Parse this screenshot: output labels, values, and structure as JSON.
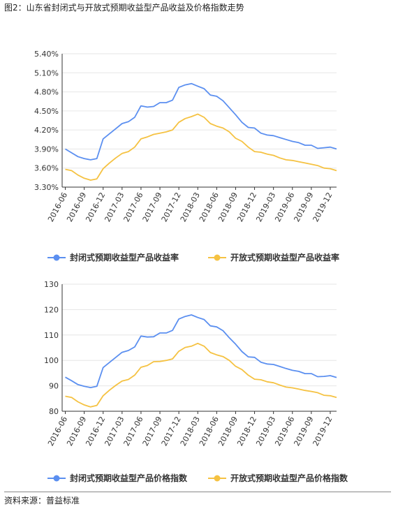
{
  "figure": {
    "title": "图2：山东省封闭式与开放式预期收益型产品收益及价格指数走势",
    "source": "资料来源：普益标准"
  },
  "chart_data": [
    {
      "type": "line",
      "ylim": [
        3.3,
        5.4
      ],
      "y_ticks": [
        "3.30%",
        "3.60%",
        "3.90%",
        "4.20%",
        "4.50%",
        "4.80%",
        "5.10%",
        "5.40%"
      ],
      "x_ticks": [
        "2016-06",
        "2016-09",
        "2016-12",
        "2017-03",
        "2017-06",
        "2017-09",
        "2017-12",
        "2018-03",
        "2018-06",
        "2018-09",
        "2018-12",
        "2019-03",
        "2019-06",
        "2019-09",
        "2019-12"
      ],
      "x_start": "2016-06",
      "grid": "horizontal",
      "legend_position": "bottom",
      "series": [
        {
          "name": "封闭式预期收益型产品收益率",
          "color": "#5b8ff0",
          "values": [
            3.9,
            3.84,
            3.78,
            3.75,
            3.73,
            3.75,
            4.06,
            4.14,
            4.22,
            4.3,
            4.33,
            4.4,
            4.58,
            4.56,
            4.57,
            4.63,
            4.63,
            4.67,
            4.87,
            4.91,
            4.93,
            4.89,
            4.85,
            4.75,
            4.73,
            4.66,
            4.55,
            4.44,
            4.32,
            4.24,
            4.23,
            4.15,
            4.12,
            4.11,
            4.08,
            4.05,
            4.02,
            4.0,
            3.96,
            3.96,
            3.91,
            3.92,
            3.93,
            3.9
          ]
        },
        {
          "name": "开放式预期收益型产品收益率",
          "color": "#f5c242",
          "values": [
            3.58,
            3.56,
            3.49,
            3.44,
            3.41,
            3.43,
            3.59,
            3.68,
            3.76,
            3.83,
            3.86,
            3.93,
            4.06,
            4.09,
            4.13,
            4.15,
            4.17,
            4.2,
            4.32,
            4.38,
            4.41,
            4.45,
            4.4,
            4.3,
            4.26,
            4.23,
            4.17,
            4.07,
            4.02,
            3.93,
            3.86,
            3.85,
            3.82,
            3.8,
            3.76,
            3.73,
            3.72,
            3.7,
            3.68,
            3.66,
            3.64,
            3.6,
            3.59,
            3.56
          ]
        }
      ]
    },
    {
      "type": "line",
      "ylim": [
        80,
        130
      ],
      "y_ticks": [
        "80",
        "90",
        "100",
        "110",
        "120",
        "130"
      ],
      "x_ticks": [
        "2016-06",
        "2016-09",
        "2016-12",
        "2017-03",
        "2017-06",
        "2017-09",
        "2017-12",
        "2018-03",
        "2018-06",
        "2018-09",
        "2018-12",
        "2019-03",
        "2019-06",
        "2019-09",
        "2019-12"
      ],
      "x_start": "2016-06",
      "grid": "horizontal",
      "legend_position": "bottom",
      "series": [
        {
          "name": "封闭式预期收益型产品价格指数",
          "color": "#5b8ff0",
          "values": [
            93.4,
            92.0,
            90.5,
            89.8,
            89.3,
            89.8,
            97.2,
            99.2,
            101.2,
            103.2,
            103.9,
            105.3,
            109.6,
            109.2,
            109.3,
            110.8,
            110.8,
            111.8,
            116.3,
            117.3,
            117.9,
            116.9,
            116.1,
            113.6,
            113.2,
            111.7,
            108.9,
            106.4,
            103.5,
            101.4,
            101.2,
            99.3,
            98.6,
            98.4,
            97.6,
            96.8,
            96.1,
            95.7,
            94.8,
            94.8,
            93.6,
            93.7,
            94.0,
            93.3
          ]
        },
        {
          "name": "开放式预期收益型产品价格指数",
          "color": "#f5c242",
          "values": [
            85.9,
            85.4,
            83.7,
            82.5,
            81.7,
            82.3,
            86.1,
            88.3,
            90.2,
            91.9,
            92.5,
            94.2,
            97.3,
            98.0,
            99.5,
            99.6,
            100.0,
            100.6,
            103.6,
            105.1,
            105.6,
            106.7,
            105.6,
            103.1,
            102.2,
            101.5,
            100.0,
            97.7,
            96.4,
            94.2,
            92.6,
            92.4,
            91.6,
            91.2,
            90.3,
            89.5,
            89.2,
            88.7,
            88.2,
            87.8,
            87.3,
            86.3,
            86.1,
            85.4
          ]
        }
      ]
    }
  ]
}
